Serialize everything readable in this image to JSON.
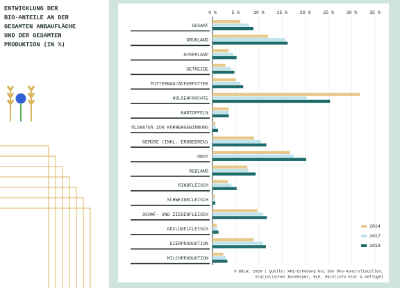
{
  "chart_data": {
    "type": "bar",
    "orientation": "horizontal",
    "title_lines": [
      "ENTWICKLUNG DER",
      "BIO-ANTEILE AN DER",
      "GESAMTEN ANBAUFLÄCHE",
      "UND DER GESAMTEN",
      "PRODUKTION (IN %)"
    ],
    "categories": [
      "GESAMT",
      "GRÜNLAND",
      "ACKERLAND",
      "GETREIDE",
      "FUTTERBAU/ACKERFUTTER",
      "HÜLSENFRÜCHTE",
      "KARTOFFELN",
      "ÖLSAATEN ZUR KÖRNERGEWINNUNG",
      "GEMÜSE (INKL. ERDBEEREN)",
      "OBST",
      "REBLAND",
      "RINDFLEISCH",
      "SCHWEINEFLEISCH",
      "SCHAF- UND ZIEGENFLEISCH",
      "GEFLÜGELFLEISCH",
      "EIERPRODUKTION",
      "MILCHPRODUKTION"
    ],
    "series": [
      {
        "name": "2014",
        "color": "#e6c98b",
        "values": [
          6.0,
          12.0,
          3.5,
          2.8,
          5.0,
          31.8,
          3.5,
          0.6,
          8.9,
          16.7,
          7.5,
          3.3,
          0.5,
          9.7,
          0.9,
          8.9,
          2.3
        ]
      },
      {
        "name": "2017",
        "color": "#bfe3ec",
        "values": [
          7.9,
          15.7,
          4.5,
          4.0,
          6.0,
          20.3,
          3.5,
          0.8,
          10.5,
          17.5,
          7.7,
          4.1,
          0.5,
          10.9,
          1.0,
          10.9,
          2.9
        ]
      },
      {
        "name": "2018",
        "color": "#1d6b6b",
        "values": [
          8.8,
          16.2,
          5.2,
          4.7,
          6.6,
          25.3,
          3.5,
          1.2,
          11.6,
          20.2,
          9.3,
          5.2,
          0.6,
          11.7,
          1.3,
          11.5,
          3.2
        ]
      }
    ],
    "xlim": [
      0,
      35
    ],
    "xticks": [
      {
        "value": 0,
        "label": "0 %"
      },
      {
        "value": 5,
        "label": "5 %"
      },
      {
        "value": 10,
        "label": "10 %"
      },
      {
        "value": 15,
        "label": "15 %"
      },
      {
        "value": 20,
        "label": "20 %"
      },
      {
        "value": 25,
        "label": "25 %"
      },
      {
        "value": 30,
        "label": "30 %"
      },
      {
        "value": 35,
        "label": "35 %"
      }
    ],
    "grid": true,
    "legend": "lower right",
    "source_lines": [
      "© BÖLW, 2020 | Quelle: AMI-Erhebung bei den Öko-Kontrollstellen,",
      "Statistisches Bundesamt, BLE, Marktinfo Eier & Geflügel"
    ]
  }
}
